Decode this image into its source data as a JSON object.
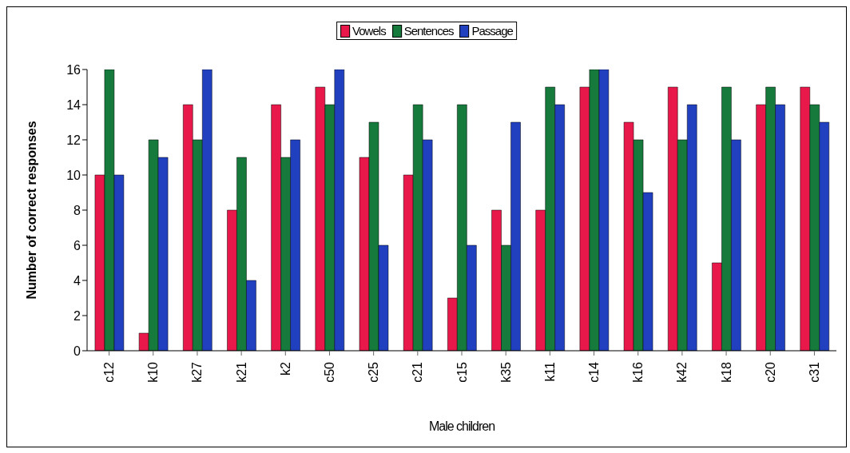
{
  "chart_data": {
    "type": "bar",
    "xlabel": "Male children",
    "ylabel": "Number of correct responses",
    "categories": [
      "c12",
      "k10",
      "k27",
      "k21",
      "k2",
      "c50",
      "c25",
      "c21",
      "c15",
      "k35",
      "k11",
      "c14",
      "k16",
      "k42",
      "k18",
      "c20",
      "c31"
    ],
    "series": [
      {
        "name": "Vowels",
        "color": "#e8194a",
        "values": [
          10,
          1,
          14,
          8,
          14,
          15,
          11,
          10,
          3,
          8,
          8,
          15,
          13,
          15,
          5,
          14,
          15
        ]
      },
      {
        "name": "Sentences",
        "color": "#157a3c",
        "values": [
          16,
          12,
          12,
          11,
          11,
          14,
          13,
          14,
          14,
          6,
          15,
          16,
          12,
          12,
          15,
          15,
          14
        ]
      },
      {
        "name": "Passage",
        "color": "#2040c0",
        "values": [
          10,
          11,
          16,
          4,
          12,
          16,
          6,
          12,
          6,
          13,
          14,
          16,
          9,
          14,
          12,
          14,
          13
        ]
      }
    ],
    "ylim": [
      0,
      16
    ],
    "yticks": [
      0,
      2,
      4,
      6,
      8,
      10,
      12,
      14,
      16
    ],
    "grid": false,
    "legend": "top"
  }
}
